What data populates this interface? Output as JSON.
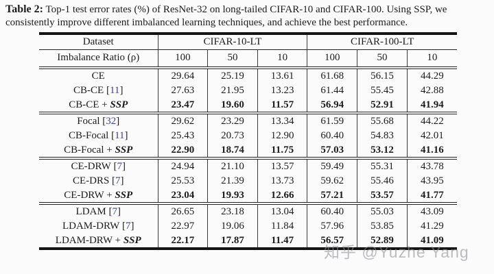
{
  "caption": {
    "label": "Table 2:",
    "text": "Top-1 test error rates (%) of ResNet-32 on long-tailed CIFAR-10 and CIFAR-100. Using SSP, we consistently improve different imbalanced learning techniques, and achieve the best performance."
  },
  "table": {
    "header": {
      "dataset_label": "Dataset",
      "group1": "CIFAR-10-LT",
      "group2": "CIFAR-100-LT",
      "ratio_label": "Imbalance Ratio (ρ)",
      "ratios": [
        "100",
        "50",
        "10",
        "100",
        "50",
        "10"
      ]
    },
    "ssp_label": "SSP",
    "blocks": [
      {
        "name": "ce",
        "rows": [
          {
            "method": "CE",
            "cite": null,
            "ssp": false,
            "bold": false,
            "values": [
              "29.64",
              "25.19",
              "13.61",
              "61.68",
              "56.15",
              "44.29"
            ]
          },
          {
            "method": "CB-CE",
            "cite": "11",
            "ssp": false,
            "bold": false,
            "values": [
              "27.63",
              "21.95",
              "13.23",
              "61.44",
              "55.45",
              "42.88"
            ]
          },
          {
            "method": "CB-CE",
            "cite": null,
            "ssp": true,
            "bold": true,
            "values": [
              "23.47",
              "19.60",
              "11.57",
              "56.94",
              "52.91",
              "41.94"
            ]
          }
        ]
      },
      {
        "name": "focal",
        "rows": [
          {
            "method": "Focal",
            "cite": "32",
            "ssp": false,
            "bold": false,
            "values": [
              "29.62",
              "23.29",
              "13.34",
              "61.59",
              "55.68",
              "44.22"
            ]
          },
          {
            "method": "CB-Focal",
            "cite": "11",
            "ssp": false,
            "bold": false,
            "values": [
              "25.43",
              "20.73",
              "12.90",
              "60.40",
              "54.83",
              "42.01"
            ]
          },
          {
            "method": "CB-Focal",
            "cite": null,
            "ssp": true,
            "bold": true,
            "values": [
              "22.90",
              "18.74",
              "11.75",
              "57.03",
              "53.12",
              "41.16"
            ]
          }
        ]
      },
      {
        "name": "drw",
        "rows": [
          {
            "method": "CE-DRW",
            "cite": "7",
            "ssp": false,
            "bold": false,
            "values": [
              "24.94",
              "21.10",
              "13.57",
              "59.49",
              "55.31",
              "43.78"
            ]
          },
          {
            "method": "CE-DRS",
            "cite": "7",
            "ssp": false,
            "bold": false,
            "values": [
              "25.53",
              "21.39",
              "13.73",
              "59.62",
              "55.46",
              "43.95"
            ]
          },
          {
            "method": "CE-DRW",
            "cite": null,
            "ssp": true,
            "bold": true,
            "values": [
              "23.04",
              "19.93",
              "12.66",
              "57.21",
              "53.57",
              "41.77"
            ]
          }
        ]
      },
      {
        "name": "ldam",
        "rows": [
          {
            "method": "LDAM",
            "cite": "7",
            "ssp": false,
            "bold": false,
            "values": [
              "26.65",
              "23.18",
              "13.04",
              "60.40",
              "55.03",
              "43.09"
            ]
          },
          {
            "method": "LDAM-DRW",
            "cite": "7",
            "ssp": false,
            "bold": false,
            "values": [
              "22.97",
              "19.06",
              "11.84",
              "57.96",
              "53.85",
              "41.29"
            ]
          },
          {
            "method": "LDAM-DRW",
            "cite": null,
            "ssp": true,
            "bold": true,
            "values": [
              "22.17",
              "17.87",
              "11.47",
              "56.57",
              "52.89",
              "41.09"
            ]
          }
        ]
      }
    ]
  },
  "watermark": {
    "text": "知乎 @Yuzhe Yang"
  }
}
